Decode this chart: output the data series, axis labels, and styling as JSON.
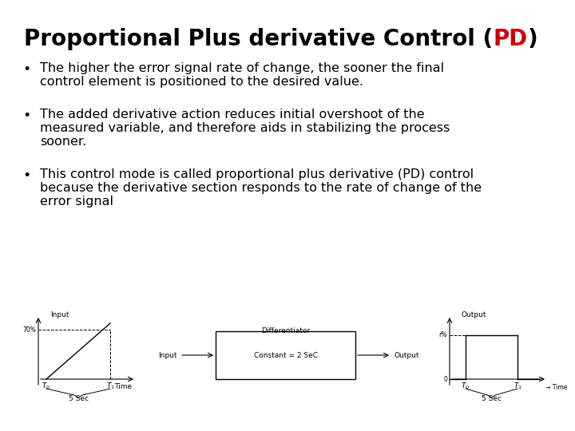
{
  "title_black1": "Proportional Plus derivative Control (",
  "title_red": "PD",
  "title_end": ")",
  "title_fontsize": 20,
  "bullet1_line1": "The higher the error signal rate of change, the sooner the final",
  "bullet1_line2": "control element is positioned to the desired value.",
  "bullet2_line1": "The added derivative action reduces initial overshoot of the",
  "bullet2_line2": "measured variable, and therefore aids in stabilizing the process",
  "bullet2_line3": "sooner.",
  "bullet3_line1": "This control mode is called proportional plus derivative (PD) control",
  "bullet3_line2": "because the derivative section responds to the rate of change of the",
  "bullet3_line3": "error signal",
  "text_fontsize": 11.5,
  "bg_color": "#ffffff",
  "text_color": "#000000",
  "red_color": "#cc0000",
  "diagram_label_fontsize": 6.5,
  "fig_width": 7.2,
  "fig_height": 5.4,
  "fig_dpi": 100
}
